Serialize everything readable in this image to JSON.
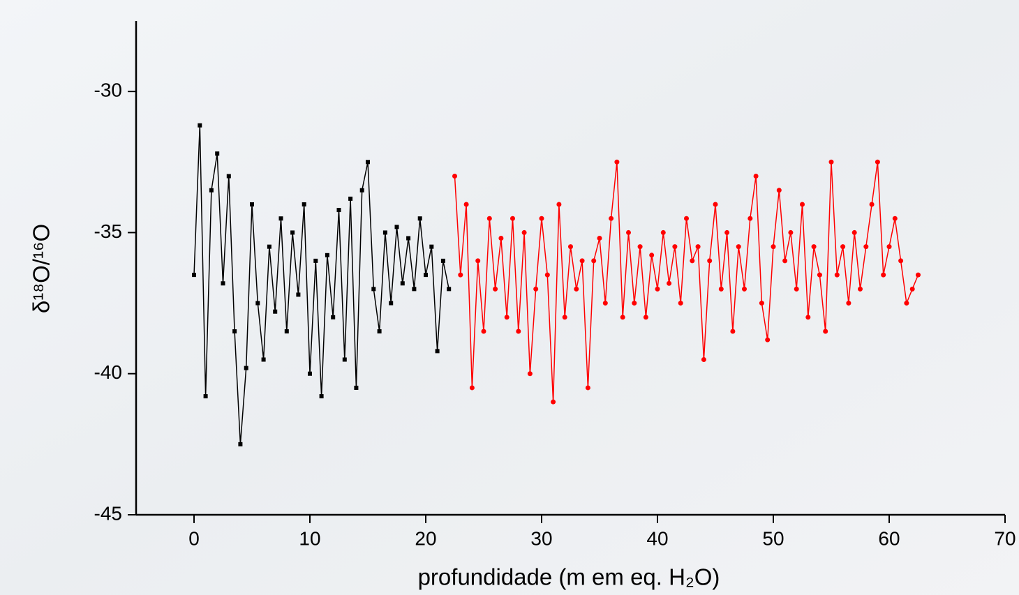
{
  "chart_data": {
    "type": "line",
    "xlabel": "profundidade (m em eq. H₂O)",
    "ylabel": "δ¹⁸O/¹⁶O",
    "xlim": [
      -5,
      70
    ],
    "xticks": [
      0,
      10,
      20,
      30,
      40,
      50,
      60,
      70
    ],
    "ylim": [
      -45,
      -27.5
    ],
    "yticks": [
      -45,
      -40,
      -35,
      -30
    ],
    "series": [
      {
        "color": "#000000",
        "marker": "square",
        "x": [
          0,
          0.5,
          1,
          1.5,
          2,
          2.5,
          3,
          3.5,
          4,
          4.5,
          5,
          5.5,
          6,
          6.5,
          7,
          7.5,
          8,
          8.5,
          9,
          9.5,
          10,
          10.5,
          11,
          11.5,
          12,
          12.5,
          13,
          13.5,
          14,
          14.5,
          15,
          15.5,
          16,
          16.5,
          17,
          17.5,
          18,
          18.5,
          19,
          19.5,
          20,
          20.5,
          21,
          21.5,
          22
        ],
        "values": [
          -36.5,
          -31.2,
          -40.8,
          -33.5,
          -32.2,
          -36.8,
          -33.0,
          -38.5,
          -42.5,
          -39.8,
          -34.0,
          -37.5,
          -39.5,
          -35.5,
          -37.8,
          -34.5,
          -38.5,
          -35.0,
          -37.2,
          -34.0,
          -40.0,
          -36.0,
          -40.8,
          -35.8,
          -38.0,
          -34.2,
          -39.5,
          -33.8,
          -40.5,
          -33.5,
          -32.5,
          -37.0,
          -38.5,
          -35.0,
          -37.5,
          -34.8,
          -36.8,
          -35.2,
          -37.0,
          -34.5,
          -36.5,
          -35.5,
          -39.2,
          -36.0,
          -37.0
        ]
      },
      {
        "color": "#ff0000",
        "marker": "circle",
        "x": [
          22.5,
          23,
          23.5,
          24,
          24.5,
          25,
          25.5,
          26,
          26.5,
          27,
          27.5,
          28,
          28.5,
          29,
          29.5,
          30,
          30.5,
          31,
          31.5,
          32,
          32.5,
          33,
          33.5,
          34,
          34.5,
          35,
          35.5,
          36,
          36.5,
          37,
          37.5,
          38,
          38.5,
          39,
          39.5,
          40,
          40.5,
          41,
          41.5,
          42,
          42.5,
          43,
          43.5,
          44,
          44.5,
          45,
          45.5,
          46,
          46.5,
          47,
          47.5,
          48,
          48.5,
          49,
          49.5,
          50,
          50.5,
          51,
          51.5,
          52,
          52.5,
          53,
          53.5,
          54,
          54.5,
          55,
          55.5,
          56,
          56.5,
          57,
          57.5,
          58,
          58.5,
          59,
          59.5,
          60,
          60.5,
          61,
          61.5,
          62,
          62.5
        ],
        "values": [
          -33.0,
          -36.5,
          -34.0,
          -40.5,
          -36.0,
          -38.5,
          -34.5,
          -37.0,
          -35.2,
          -38.0,
          -34.5,
          -38.5,
          -35.0,
          -40.0,
          -37.0,
          -34.5,
          -36.5,
          -41.0,
          -34.0,
          -38.0,
          -35.5,
          -37.0,
          -36.0,
          -40.5,
          -36.0,
          -35.2,
          -37.5,
          -34.5,
          -32.5,
          -38.0,
          -35.0,
          -37.5,
          -35.5,
          -38.0,
          -35.8,
          -37.0,
          -35.0,
          -36.8,
          -35.5,
          -37.5,
          -34.5,
          -36.0,
          -35.5,
          -39.5,
          -36.0,
          -34.0,
          -37.0,
          -35.0,
          -38.5,
          -35.5,
          -37.0,
          -34.5,
          -33.0,
          -37.5,
          -38.8,
          -35.5,
          -33.5,
          -36.0,
          -35.0,
          -37.0,
          -34.0,
          -38.0,
          -35.5,
          -36.5,
          -38.5,
          -32.5,
          -36.5,
          -35.5,
          -37.5,
          -35.0,
          -37.0,
          -35.5,
          -34.0,
          -32.5,
          -36.5,
          -35.5,
          -34.5,
          -36.0,
          -37.5,
          -37.0,
          -36.5
        ]
      }
    ]
  }
}
